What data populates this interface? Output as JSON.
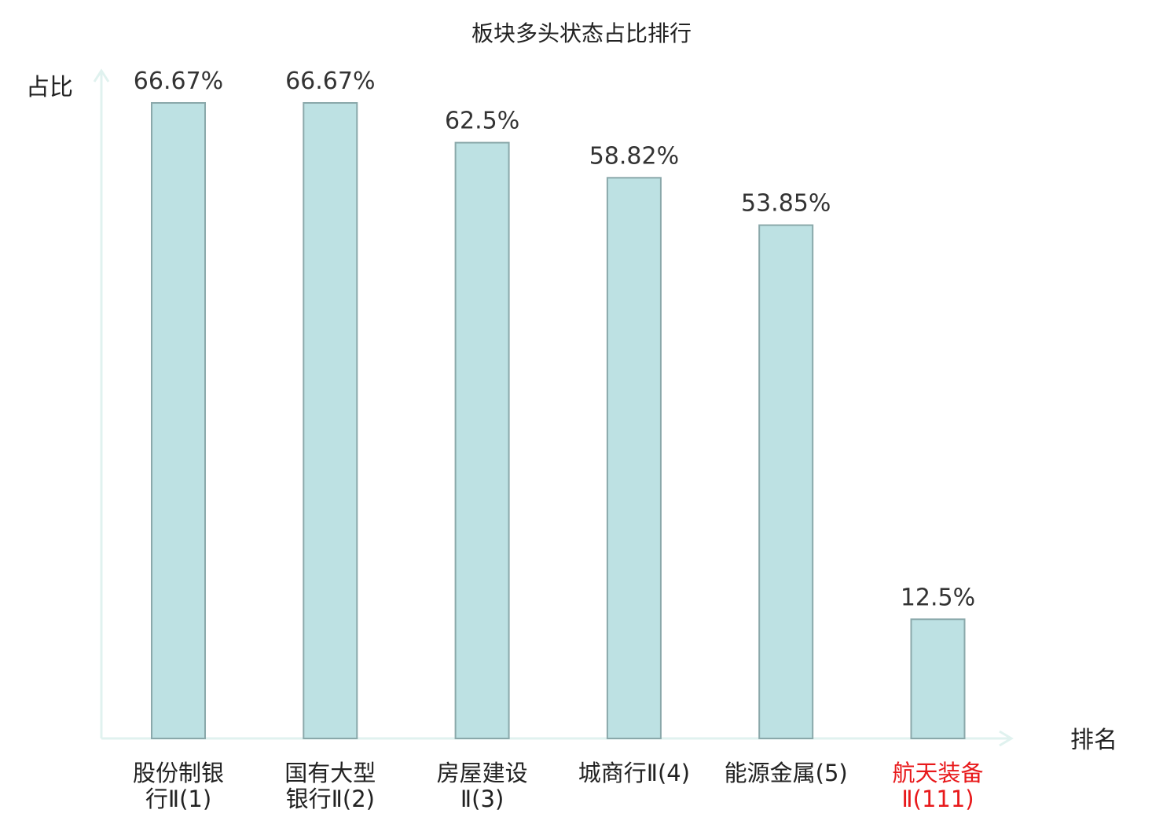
{
  "chart_data": {
    "type": "bar",
    "title": "板块多头状态占比排行",
    "ylabel": "占比",
    "xlabel": "排名",
    "ylim": [
      0,
      66.67
    ],
    "grid": false,
    "categories": [
      {
        "name": "股份制银行",
        "rank": "Ⅱ(1)",
        "line1": "股份制银",
        "line2": "行Ⅱ(1)",
        "highlight": false
      },
      {
        "name": "国有大型银行",
        "rank": "Ⅱ(2)",
        "line1": "国有大型",
        "line2": "银行Ⅱ(2)",
        "highlight": false
      },
      {
        "name": "房屋建设",
        "rank": "Ⅱ(3)",
        "line1": "房屋建设",
        "line2": "Ⅱ(3)",
        "highlight": false
      },
      {
        "name": "城商行",
        "rank": "Ⅱ(4)",
        "line1": "城商行Ⅱ(4)",
        "line2": "",
        "highlight": false
      },
      {
        "name": "能源金属",
        "rank": "(5)",
        "line1": "能源金属(5)",
        "line2": "",
        "highlight": false
      },
      {
        "name": "航天装备",
        "rank": "Ⅱ(111)",
        "line1": "航天装备",
        "line2": "Ⅱ(111)",
        "highlight": true
      }
    ],
    "values": [
      66.67,
      66.67,
      62.5,
      58.82,
      53.85,
      12.5
    ],
    "value_labels": [
      "66.67%",
      "66.67%",
      "62.5%",
      "58.82%",
      "53.85%",
      "12.5%"
    ],
    "colors": {
      "bar_fill": "#bde1e3",
      "bar_stroke": "#8aa8aa",
      "axis": "#e0f2ef",
      "text": "#222222",
      "highlight": "#e8191b"
    }
  }
}
